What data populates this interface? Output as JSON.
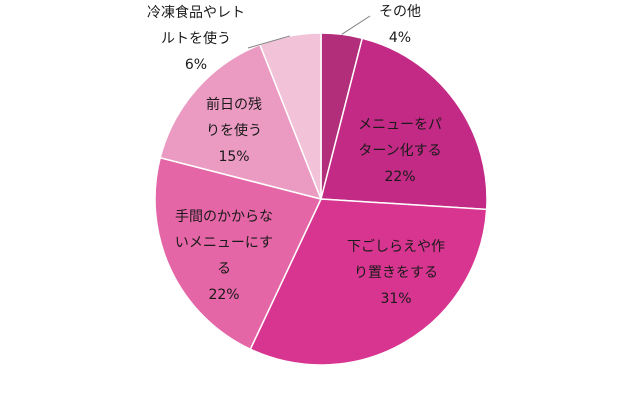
{
  "chart_data": {
    "type": "pie",
    "title": "",
    "slices": [
      {
        "label_lines": [
          "その他"
        ],
        "value": 4,
        "value_label": "4%",
        "color": "#b22d7a"
      },
      {
        "label_lines": [
          "メニューをパ",
          "ターン化する"
        ],
        "value": 22,
        "value_label": "22%",
        "color": "#c22a85"
      },
      {
        "label_lines": [
          "下ごしらえや作",
          "り置きをする"
        ],
        "value": 31,
        "value_label": "31%",
        "color": "#d83591"
      },
      {
        "label_lines": [
          "手間のかからな",
          "いメニューにす",
          "る"
        ],
        "value": 22,
        "value_label": "22%",
        "color": "#e566a6"
      },
      {
        "label_lines": [
          "前日の残",
          "りを使う"
        ],
        "value": 15,
        "value_label": "15%",
        "color": "#eb9bc2"
      },
      {
        "label_lines": [
          "冷凍食品やレト",
          "ルトを使う"
        ],
        "value": 6,
        "value_label": "6%",
        "color": "#f2c3d8"
      }
    ]
  }
}
